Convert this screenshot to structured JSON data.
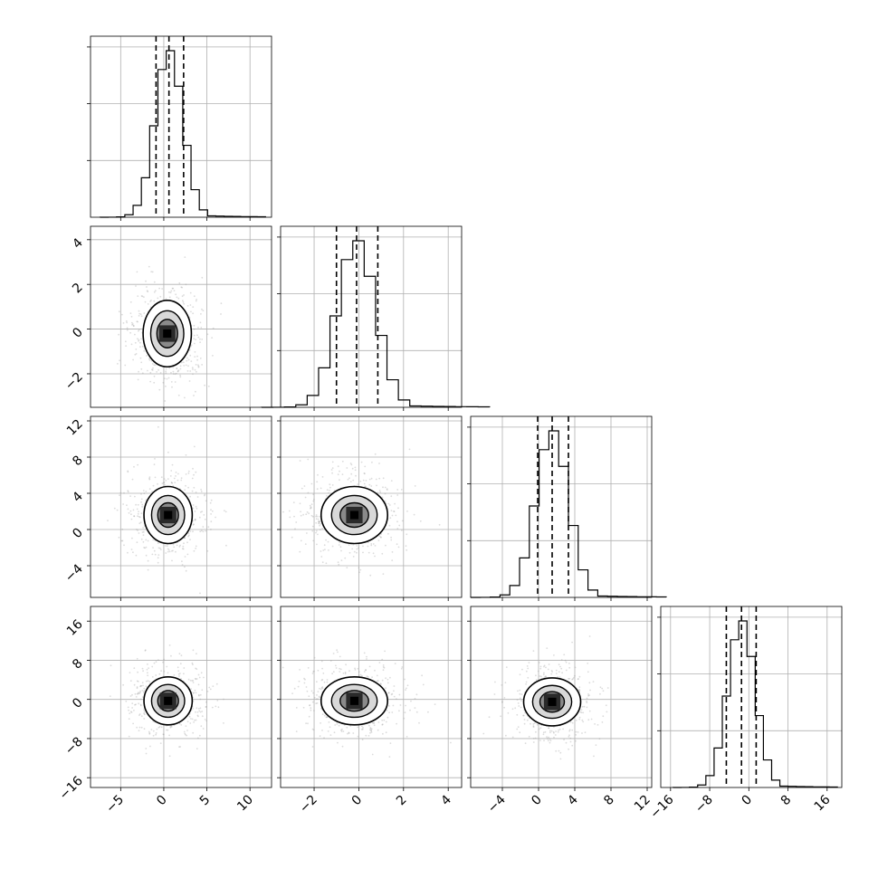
{
  "chart_data": {
    "type": "corner",
    "title": "",
    "parameters": 4,
    "grid": true,
    "quantiles": [
      0.16,
      0.5,
      0.84
    ],
    "axes": [
      {
        "range": [
          -8.5,
          12.5
        ],
        "ticks": [
          -5,
          0,
          5,
          10
        ],
        "tick_labels": [
          "−5",
          "0",
          "5",
          "10"
        ],
        "mean": 0.6,
        "sigma": 1.6,
        "q16": -0.9,
        "q50": 0.6,
        "q84": 2.3
      },
      {
        "range": [
          -3.5,
          4.6
        ],
        "ticks": [
          -2,
          0,
          2,
          4
        ],
        "tick_labels": [
          "−2",
          "0",
          "2",
          "4"
        ],
        "mean": -0.1,
        "sigma": 0.85,
        "q16": -1.0,
        "q50": -0.1,
        "q84": 0.85
      },
      {
        "range": [
          -7.5,
          12.5
        ],
        "ticks": [
          -4,
          0,
          4,
          8,
          12
        ],
        "tick_labels": [
          "−4",
          "0",
          "4",
          "8",
          "12"
        ],
        "mean": 1.5,
        "sigma": 1.8,
        "q16": -0.1,
        "q50": 1.5,
        "q84": 3.3
      },
      {
        "range": [
          -18,
          19
        ],
        "ticks": [
          -16,
          -8,
          0,
          8,
          16
        ],
        "tick_labels": [
          "−16",
          "−8",
          "0",
          "8",
          "16"
        ],
        "mean": -1.5,
        "sigma": 2.8,
        "q16": -4.6,
        "q50": -1.5,
        "q84": 1.5
      }
    ],
    "pairs": [
      {
        "x": 0,
        "y": 1,
        "center": [
          0.4,
          -0.2
        ]
      },
      {
        "x": 0,
        "y": 2,
        "center": [
          0.5,
          1.6
        ]
      },
      {
        "x": 1,
        "y": 2,
        "center": [
          -0.2,
          1.6
        ]
      },
      {
        "x": 0,
        "y": 3,
        "center": [
          0.5,
          -0.3
        ]
      },
      {
        "x": 1,
        "y": 3,
        "center": [
          -0.2,
          -0.3
        ]
      },
      {
        "x": 2,
        "y": 3,
        "center": [
          1.5,
          -0.5
        ]
      }
    ]
  }
}
